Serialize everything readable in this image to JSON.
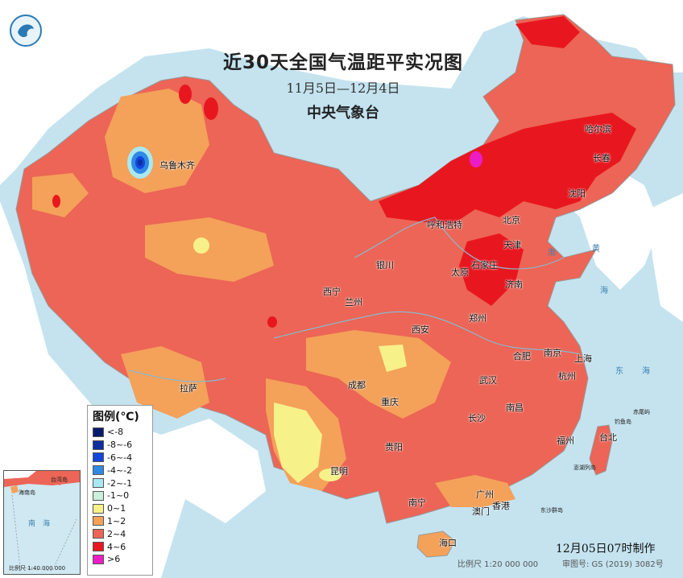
{
  "title": "近30天全国气温距平实况图",
  "subtitle": "11月5日—12月4日",
  "agency": "中央气象台",
  "legend": {
    "title": "图例(℃)",
    "items": [
      {
        "label": "<-8",
        "color": "#0a1a6b"
      },
      {
        "label": "-8~-6",
        "color": "#0f2f9e"
      },
      {
        "label": "-6~-4",
        "color": "#1446dc"
      },
      {
        "label": "-4~-2",
        "color": "#2f8ae6"
      },
      {
        "label": "-2~-1",
        "color": "#a9e8f0"
      },
      {
        "label": "-1~0",
        "color": "#cdeedd"
      },
      {
        "label": "0~1",
        "color": "#f7f18a"
      },
      {
        "label": "1~2",
        "color": "#f4a15a"
      },
      {
        "label": "2~4",
        "color": "#ec6556"
      },
      {
        "label": "4~6",
        "color": "#e8171f"
      },
      {
        "label": ">6",
        "color": "#ec1dc6"
      }
    ]
  },
  "cities": {
    "urumqi": "乌鲁木齐",
    "hohhot": "呼和浩特",
    "harbin": "哈尔滨",
    "changchun": "长春",
    "shenyang": "沈阳",
    "beijing": "北京",
    "tianjin": "天津",
    "shijiazhuang": "石家庄",
    "taiyuan": "太原",
    "jinan": "济南",
    "yinchuan": "银川",
    "xining": "西宁",
    "lanzhou": "兰州",
    "zhengzhou": "郑州",
    "xian": "西安",
    "hefei": "合肥",
    "nanjing": "南京",
    "shanghai": "上海",
    "hangzhou": "杭州",
    "lhasa": "拉萨",
    "chengdu": "成都",
    "chongqing": "重庆",
    "wuhan": "武汉",
    "nanchang": "南昌",
    "changsha": "长沙",
    "guiyang": "贵阳",
    "kunming": "昆明",
    "fuzhou": "福州",
    "taipei": "台北",
    "nanning": "南宁",
    "guangzhou": "广州",
    "hongkong": "香港",
    "macau": "澳门",
    "haikou": "海口"
  },
  "seas": {
    "bohai": "渤",
    "yellow": "黄",
    "sea1": "海",
    "east": "东",
    "sea2": "海"
  },
  "islands": {
    "chiwei": "赤尾屿",
    "diaoyu": "钓鱼岛",
    "penghu": "澎湖列岛",
    "dongsha": "东沙群岛"
  },
  "inset": {
    "island1": "台湾岛",
    "island2": "海南岛",
    "nanhai": "南",
    "hai": "海",
    "scale": "比例尺 1:40 000 000"
  },
  "footer": {
    "date": "12月05日07时制作",
    "scale": "比例尺 1:20 000 000",
    "audit": "审图号: GS (2019) 3082号"
  }
}
